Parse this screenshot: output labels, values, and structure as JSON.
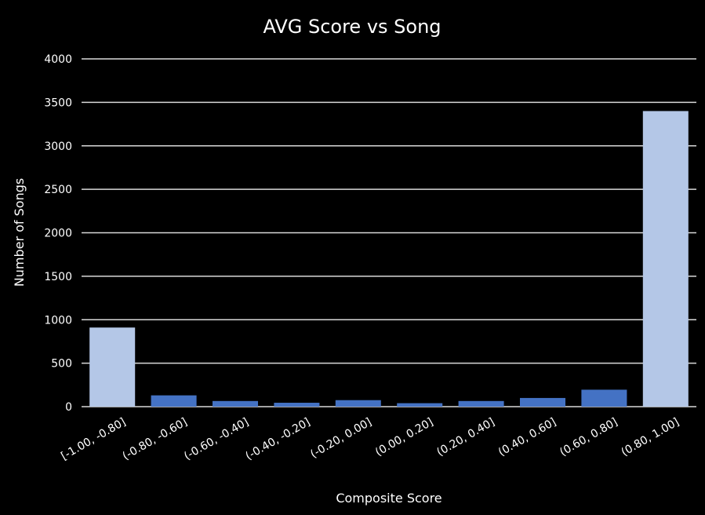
{
  "chart_data": {
    "type": "bar",
    "title": "AVG Score vs Song",
    "xlabel": "Composite Score",
    "ylabel": "Number of Songs",
    "categories": [
      "[-1.00, -0.80]",
      "(-0.80, -0.60]",
      "(-0.60, -0.40]",
      "(-0.40, -0.20]",
      "(-0.20, 0.00]",
      "(0.00, 0.20]",
      "(0.20, 0.40]",
      "(0.40, 0.60]",
      "(0.60, 0.80]",
      "(0.80, 1.00]"
    ],
    "values": [
      910,
      130,
      65,
      45,
      75,
      40,
      65,
      100,
      195,
      3400
    ],
    "ylim": [
      0,
      4000
    ],
    "yticks": [
      0,
      500,
      1000,
      1500,
      2000,
      2500,
      3000,
      3500,
      4000
    ],
    "grid": true,
    "legend": "none",
    "colors": {
      "background": "#000000",
      "text": "#ffffff",
      "gridline": "#d9d9d9",
      "bar_highlight": "#b4c7e7",
      "bar_default": "#4472c4"
    },
    "highlighted_categories": [
      0,
      9
    ]
  }
}
